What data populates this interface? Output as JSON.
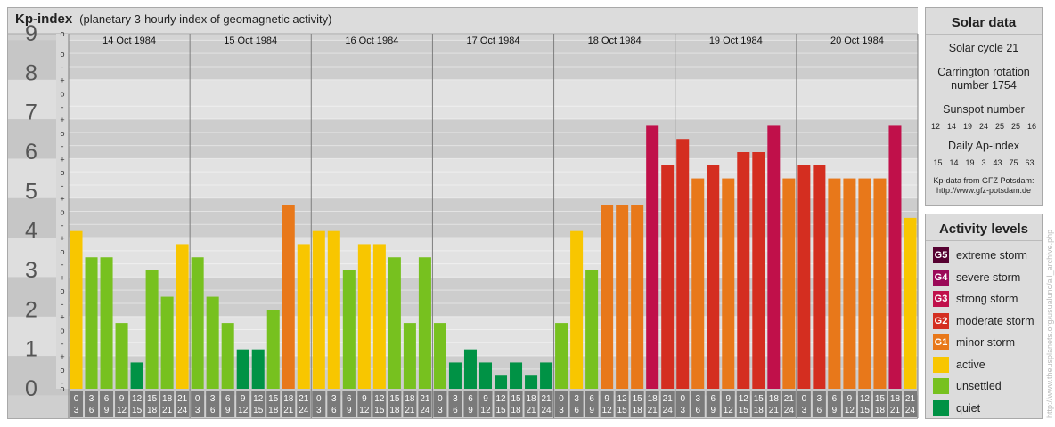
{
  "header": {
    "title": "Kp-index",
    "subtitle": "(planetary 3-hourly index of geomagnetic activity)"
  },
  "chart_data": {
    "type": "bar",
    "title": "Kp-index",
    "subtitle": "(planetary 3-hourly index of geomagnetic activity)",
    "ylim": [
      0,
      9
    ],
    "y_ticks": [
      "0",
      "1",
      "2",
      "3",
      "4",
      "5",
      "6",
      "7",
      "8",
      "9"
    ],
    "sub_ticks": [
      "+",
      "o",
      "-"
    ],
    "days": [
      "14 Oct 1984",
      "15 Oct 1984",
      "16 Oct 1984",
      "17 Oct 1984",
      "18 Oct 1984",
      "19 Oct 1984",
      "20 Oct 1984"
    ],
    "hour_top": [
      "0",
      "3",
      "6",
      "9",
      "12",
      "15",
      "18",
      "21"
    ],
    "hour_bottom": [
      "3",
      "6",
      "9",
      "12",
      "15",
      "18",
      "21",
      "24"
    ],
    "values": [
      [
        4.0,
        3.333,
        3.333,
        1.667,
        0.667,
        3.0,
        2.333,
        3.667
      ],
      [
        3.333,
        2.333,
        1.667,
        1.0,
        1.0,
        2.0,
        4.667,
        3.667
      ],
      [
        4.0,
        4.0,
        3.0,
        3.667,
        3.667,
        3.333,
        1.667,
        3.333
      ],
      [
        1.667,
        0.667,
        1.0,
        0.667,
        0.333,
        0.667,
        0.333,
        0.667
      ],
      [
        1.667,
        4.0,
        3.0,
        4.667,
        4.667,
        4.667,
        6.667,
        5.667
      ],
      [
        6.333,
        5.333,
        5.667,
        5.333,
        6.0,
        6.0,
        6.667,
        5.333
      ],
      [
        5.667,
        5.667,
        5.333,
        5.333,
        5.333,
        5.333,
        6.667,
        4.333
      ]
    ],
    "level_colors": {
      "quiet": "#009245",
      "unsettled": "#77c11f",
      "active": "#f8c600",
      "G1": "#e8781a",
      "G2": "#d42e20",
      "G3": "#c0104a",
      "G4": "#9b0958",
      "G5": "#560131"
    },
    "grid": true
  },
  "solar": {
    "title": "Solar data",
    "cycle": "Solar cycle 21",
    "carrington_1": "Carrington rotation",
    "carrington_2": "number 1754",
    "sunspot_label": "Sunspot number",
    "sunspot_values": [
      "12",
      "14",
      "19",
      "24",
      "25",
      "25",
      "16"
    ],
    "ap_label": "Daily Ap-index",
    "ap_values": [
      "15",
      "14",
      "19",
      "3",
      "43",
      "75",
      "63"
    ],
    "source_1": "Kp-data from GFZ Potsdam:",
    "source_2": "http://www.gfz-potsdam.de"
  },
  "legend": {
    "title": "Activity levels",
    "items": [
      {
        "badge": "G5",
        "label": "extreme storm",
        "color": "#560131"
      },
      {
        "badge": "G4",
        "label": "severe storm",
        "color": "#9b0958"
      },
      {
        "badge": "G3",
        "label": "strong storm",
        "color": "#c0104a"
      },
      {
        "badge": "G2",
        "label": "moderate storm",
        "color": "#d42e20"
      },
      {
        "badge": "G1",
        "label": "minor storm",
        "color": "#e8781a"
      },
      {
        "badge": "",
        "label": "active",
        "color": "#f8c600"
      },
      {
        "badge": "",
        "label": "unsettled",
        "color": "#77c11f"
      },
      {
        "badge": "",
        "label": "quiet",
        "color": "#009245"
      }
    ]
  },
  "watermark": "http://www.theusplanets.org/usualunc/all_archive.php"
}
